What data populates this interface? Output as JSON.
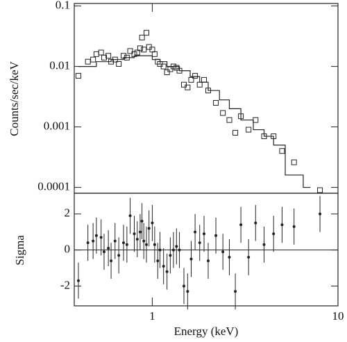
{
  "chart_data": [
    {
      "type": "spectrum",
      "y_label": "Counts/sec/keV",
      "x_log": true,
      "y_log": true,
      "xlim": [
        0.38,
        10
      ],
      "ylim": [
        8e-05,
        0.11
      ],
      "yticks": [
        0.1,
        0.01,
        0.001,
        0.0001
      ],
      "color": "#222222",
      "series": [
        {
          "name": "data",
          "x": [
            0.4,
            0.45,
            0.48,
            0.5,
            0.53,
            0.55,
            0.58,
            0.6,
            0.63,
            0.66,
            0.7,
            0.73,
            0.76,
            0.8,
            0.83,
            0.86,
            0.88,
            0.9,
            0.93,
            0.96,
            1.0,
            1.03,
            1.07,
            1.1,
            1.15,
            1.2,
            1.25,
            1.3,
            1.35,
            1.4,
            1.48,
            1.55,
            1.62,
            1.7,
            1.8,
            1.9,
            2.0,
            2.2,
            2.4,
            2.6,
            2.8,
            3.0,
            3.3,
            3.6,
            4.0,
            4.5,
            5.0,
            5.8,
            8.0
          ],
          "values": [
            0.007,
            0.012,
            0.013,
            0.016,
            0.017,
            0.014,
            0.015,
            0.012,
            0.013,
            0.011,
            0.015,
            0.014,
            0.018,
            0.016,
            0.017,
            0.02,
            0.03,
            0.019,
            0.036,
            0.021,
            0.019,
            0.016,
            0.012,
            0.011,
            0.01,
            0.008,
            0.009,
            0.01,
            0.0095,
            0.0085,
            0.005,
            0.0045,
            0.006,
            0.007,
            0.005,
            0.006,
            0.004,
            0.0025,
            0.0017,
            0.0013,
            0.0008,
            0.0015,
            0.0009,
            0.0013,
            0.0007,
            0.0007,
            0.0004,
            0.00026,
            9e-05
          ]
        }
      ],
      "model": {
        "bins": [
          0.4,
          0.5,
          0.6,
          0.7,
          0.8,
          0.9,
          1.0,
          1.1,
          1.2,
          1.4,
          1.6,
          1.8,
          2.0,
          2.3,
          2.6,
          3.0,
          3.5,
          4.0,
          4.5,
          5.2,
          6.5,
          7.1
        ],
        "values": [
          0.01,
          0.012,
          0.013,
          0.014,
          0.015,
          0.015,
          0.013,
          0.012,
          0.01,
          0.0085,
          0.0068,
          0.0055,
          0.004,
          0.0028,
          0.002,
          0.0013,
          0.0009,
          0.0007,
          0.0005,
          0.00016,
          0.0001
        ]
      }
    },
    {
      "type": "residual",
      "y_label": "Sigma",
      "x_label": "Energy (keV)",
      "x_log": true,
      "xlim": [
        0.38,
        10
      ],
      "ylim": [
        -3.1,
        3.15
      ],
      "yticks": [
        2,
        0,
        -2
      ],
      "xticks": [
        1,
        10
      ],
      "zero_line": 0,
      "color": "#222222",
      "series": [
        {
          "name": "residuals",
          "error": 1,
          "x": [
            0.4,
            0.45,
            0.48,
            0.5,
            0.53,
            0.55,
            0.58,
            0.6,
            0.63,
            0.66,
            0.7,
            0.73,
            0.76,
            0.8,
            0.83,
            0.86,
            0.88,
            0.9,
            0.93,
            0.96,
            1.0,
            1.03,
            1.07,
            1.1,
            1.15,
            1.2,
            1.25,
            1.3,
            1.35,
            1.4,
            1.48,
            1.55,
            1.62,
            1.7,
            1.8,
            1.9,
            2.0,
            2.2,
            2.4,
            2.6,
            2.8,
            3.0,
            3.3,
            3.6,
            4.0,
            4.5,
            5.0,
            5.8,
            8.0
          ],
          "values": [
            -1.7,
            0.4,
            0.5,
            0.8,
            0.7,
            -0.1,
            0.1,
            -0.6,
            0.5,
            -0.3,
            0.4,
            0.3,
            1.9,
            0.9,
            0.6,
            1.0,
            1.6,
            0.5,
            0.3,
            1.2,
            1.5,
            0.3,
            -0.6,
            0.0,
            -0.9,
            -1.2,
            -0.3,
            0.0,
            0.2,
            0.0,
            -2.0,
            -2.3,
            -0.5,
            1.0,
            0.4,
            0.9,
            -0.6,
            0.8,
            -0.1,
            -0.4,
            -2.3,
            1.4,
            -0.4,
            1.5,
            0.3,
            0.9,
            1.4,
            1.3,
            2.0
          ]
        }
      ]
    }
  ]
}
